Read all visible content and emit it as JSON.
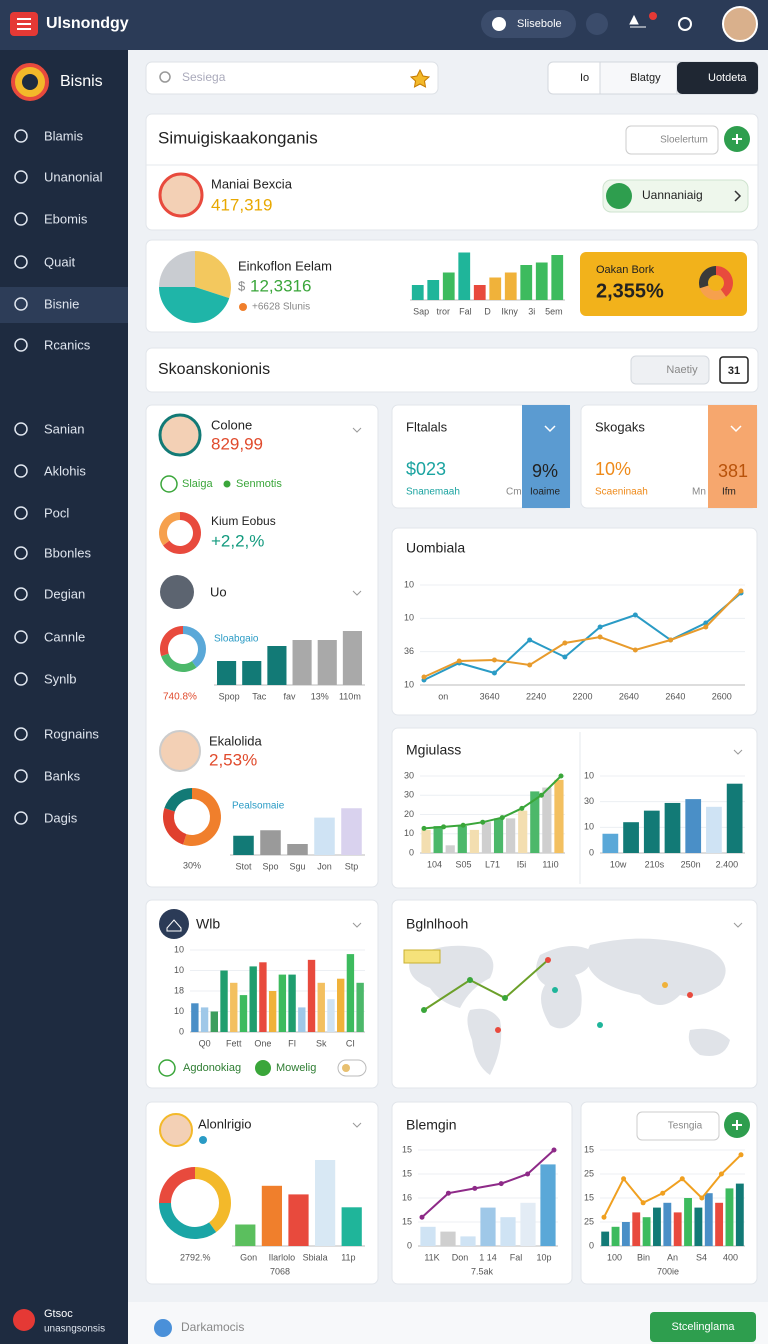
{
  "topbar": {
    "brand": "Ulsnondgy",
    "user": "Slisebole"
  },
  "sidebar": {
    "title": "Bisnis",
    "items": [
      "Blamis",
      "Unanonial",
      "Ebomis",
      "Quait",
      "Bisnie",
      "Rcanics",
      "Sanian",
      "Aklohis",
      "Pocl",
      "Bbonles",
      "Degian",
      "Cannle",
      "Synlb",
      "Rognains",
      "Banks",
      "Dagis"
    ],
    "active": 4,
    "footer": {
      "title": "Gtsoc",
      "subtitle": "unasngsonsis"
    }
  },
  "toolbar": {
    "search": "Sesiega",
    "buttons": [
      "Io",
      "Blatgy",
      "Uotdeta"
    ]
  },
  "summary": {
    "title": "Simuigiskaakonganis",
    "button": "Sloelertum",
    "person": {
      "name": "Maniai Bexcia",
      "value": "417,319"
    },
    "action": "Uannaniaig"
  },
  "overview": {
    "title": "Einkoflon Eelam",
    "currency": "$",
    "value": "12,3316",
    "delta": "+6628 Slunis",
    "pie": {
      "values": [
        30,
        45,
        25
      ],
      "colors": [
        "#f3c85e",
        "#1fb5a8",
        "#c9ccd1"
      ]
    },
    "chart": {
      "ylim": [
        0,
        100
      ],
      "xlabels": [
        "Sap",
        "tror",
        "Fal",
        "D",
        "Ikny",
        "3i",
        "5em"
      ],
      "bars": [
        30,
        40,
        55,
        95,
        30,
        45,
        55,
        70,
        75,
        90
      ],
      "colors": [
        "#1fb59a",
        "#1fb59a",
        "#3dbb5e",
        "#1fb59a",
        "#e84a3d",
        "#f0b23a",
        "#f0b23a",
        "#3dbb5e",
        "#3dbb5e",
        "#3dbb5e"
      ]
    },
    "highlight": {
      "label": "Oakan Bork",
      "value": "2,355%",
      "donut": {
        "values": [
          40,
          30,
          30
        ],
        "colors": [
          "#e84a3d",
          "#f6a04d",
          "#3a3a3a"
        ]
      }
    }
  },
  "section": {
    "title": "Skoanskonionis",
    "button": "Naetiy",
    "date": "31"
  },
  "left_card": {
    "profile": {
      "name": "Colone",
      "value": "829,99"
    },
    "tags": [
      "Slaiga",
      "Senmotis"
    ],
    "metric": {
      "name": "Kium Eobus",
      "value": "+2,2,%",
      "donut": {
        "values": [
          65,
          35
        ],
        "colors": [
          "#e84a3d",
          "#f6a04d"
        ]
      }
    },
    "group": {
      "name": "Uo",
      "legend": "Sloabgaio",
      "note": "740.8%",
      "donut": {
        "values": [
          40,
          30,
          30
        ],
        "colors": [
          "#5aa8d8",
          "#4cb86a",
          "#e84a3d"
        ]
      },
      "chart": {
        "ylim": [
          0,
          100
        ],
        "xlabels": [
          "Spop",
          "Tac",
          "fav",
          "13%",
          "110m"
        ],
        "bars": [
          40,
          40,
          65,
          75,
          75,
          90
        ],
        "colors": [
          "#127a76",
          "#127a76",
          "#127a76",
          "#a9a9a9",
          "#a9a9a9",
          "#a9a9a9"
        ]
      }
    },
    "profile2": {
      "name": "Ekalolida",
      "value": "2,53%"
    },
    "group2": {
      "legend": "Pealsomaie",
      "note": "30%",
      "donut": {
        "values": [
          55,
          25,
          20
        ],
        "colors": [
          "#f07f2c",
          "#e0402e",
          "#127a76"
        ]
      },
      "chart": {
        "ylim": [
          0,
          100
        ],
        "xlabels": [
          "Stot",
          "Spo",
          "Sgu",
          "Jon",
          "Stp"
        ],
        "bars": [
          35,
          45,
          20,
          68,
          85
        ],
        "colors": [
          "#127a76",
          "#9a9a9a",
          "#9a9a9a",
          "#cfe3f4",
          "#d9d2ee"
        ]
      }
    }
  },
  "stats": [
    {
      "title": "Fltalals",
      "value": "$023",
      "caption": "Snanemaah",
      "side_value": "9%",
      "side_prefix": "Cm",
      "side_caption": "Ioaime"
    },
    {
      "title": "Skogaks",
      "value": "10%",
      "caption": "Scaeninaah",
      "side_value": "381",
      "side_prefix": "Mn",
      "side_caption": "Ifm"
    }
  ],
  "line_chart": {
    "title": "Uombiala",
    "ylim": [
      0,
      100
    ],
    "ylabels": [
      "10",
      "10",
      "36",
      "10"
    ],
    "xlabels": [
      "on",
      "3640",
      "2240",
      "2200",
      "2640",
      "2640",
      "2600"
    ],
    "lines": [
      {
        "color": "#2a9bc5",
        "values": [
          5,
          22,
          12,
          45,
          28,
          58,
          70,
          45,
          62,
          92
        ]
      },
      {
        "color": "#e89b2c",
        "values": [
          8,
          24,
          25,
          20,
          42,
          48,
          35,
          45,
          58,
          94
        ]
      }
    ]
  },
  "combo": {
    "title": "Mgiulass",
    "left": {
      "ylim": [
        0,
        100
      ],
      "ylabels": [
        "30",
        "30",
        "20",
        "10",
        "0"
      ],
      "xlabels": [
        "104",
        "S05",
        "L71",
        "I5i",
        "11i0"
      ],
      "bars": [
        30,
        35,
        10,
        35,
        30,
        40,
        45,
        45,
        55,
        80,
        85,
        95
      ],
      "colors": [
        "#f3deb0",
        "#4cb86a",
        "#cfcfcf",
        "#4cb86a",
        "#f3deb0",
        "#cfcfcf",
        "#4cb86a",
        "#cfcfcf",
        "#f3deb0",
        "#4cb86a",
        "#cfcfcf",
        "#f3c060"
      ],
      "lines": [
        {
          "color": "#3aa63a",
          "values": [
            32,
            34,
            36,
            40,
            46,
            58,
            75,
            100
          ]
        }
      ]
    },
    "right": {
      "ylim": [
        0,
        100
      ],
      "ylabels": [
        "10",
        "30",
        "10",
        "0"
      ],
      "xlabels": [
        "10w",
        "210s",
        "250n",
        "2.400"
      ],
      "bars": [
        25,
        40,
        55,
        65,
        70,
        60,
        90
      ],
      "colors": [
        "#5aa8d8",
        "#127a76",
        "#127a76",
        "#127a76",
        "#4a8fc7",
        "#cfe3f4",
        "#127a76"
      ]
    }
  },
  "wlb": {
    "title": "Wlb",
    "legend": [
      "Agdonokiag",
      "Mowelig"
    ],
    "chart": {
      "ylim": [
        0,
        100
      ],
      "ylabels": [
        "10",
        "10",
        "18",
        "10",
        "0"
      ],
      "xlabels": [
        "Q0",
        "Fett",
        "One",
        "FI",
        "Sk",
        "CI"
      ],
      "bars": [
        35,
        30,
        25,
        75,
        60,
        45,
        80,
        85,
        50,
        70,
        70,
        30,
        88,
        60,
        40,
        65,
        95,
        60
      ],
      "colors": [
        "#4a8fc7",
        "#9fc8e8",
        "#3d9e5e",
        "#1f9e6e",
        "#f3c060",
        "#3dbb5e",
        "#1f9e6e",
        "#e84a3d",
        "#f0b23a",
        "#3dbb5e",
        "#1f9e6e",
        "#9fc8e8",
        "#e84a3d",
        "#f3c060",
        "#cfe3f4",
        "#f0b23a",
        "#3dbb5e",
        "#4cb86a"
      ]
    }
  },
  "map": {
    "title": "Bglnlhooh"
  },
  "bottom": [
    {
      "title": "Alonlrigio",
      "note": "2792.%",
      "subnote": "7068",
      "donut": {
        "values": [
          40,
          35,
          25
        ],
        "colors": [
          "#f3b92a",
          "#1aa5a5",
          "#e84a3d"
        ]
      },
      "chart": {
        "ylim": [
          0,
          100
        ],
        "xlabels": [
          "Gon",
          "Ilarlolo",
          "Sbiala",
          "11p"
        ],
        "bars": [
          25,
          70,
          60,
          100,
          45
        ],
        "colors": [
          "#5bbf5e",
          "#f07f2c",
          "#e84a3d",
          "#d8e8f4",
          "#1fb59a"
        ]
      }
    },
    {
      "title": "Blemgin",
      "subnote": "7.5ak",
      "chart": {
        "ylim": [
          0,
          100
        ],
        "ylabels": [
          "15",
          "15",
          "16",
          "15",
          "0"
        ],
        "xlabels": [
          "11K",
          "Don",
          "1 14",
          "Fal",
          "10p"
        ],
        "bars": [
          20,
          15,
          10,
          40,
          30,
          45,
          85
        ],
        "colors": [
          "#cfe3f4",
          "#cfcfcf",
          "#cfe3f4",
          "#9fc8e8",
          "#cfe3f4",
          "#e3ecf5",
          "#5aa8d8"
        ],
        "lines": [
          {
            "color": "#8e2a88",
            "values": [
              30,
              55,
              60,
              65,
              75,
              100
            ]
          }
        ]
      }
    },
    {
      "button": "Tesngia",
      "subnote": "700ie",
      "chart": {
        "ylim": [
          0,
          100
        ],
        "ylabels": [
          "15",
          "25",
          "15",
          "25",
          "0"
        ],
        "xlabels": [
          "100",
          "Bin",
          "An",
          "S4",
          "400"
        ],
        "bars": [
          15,
          20,
          25,
          35,
          30,
          40,
          45,
          35,
          50,
          40,
          55,
          45,
          60,
          65
        ],
        "colors": [
          "#127a76",
          "#3dbb5e",
          "#4a8fc7",
          "#e84a3d",
          "#3dbb5e",
          "#127a76",
          "#4a8fc7",
          "#e84a3d",
          "#3dbb5e",
          "#127a76",
          "#4a8fc7",
          "#e84a3d",
          "#3dbb5e",
          "#127a76"
        ],
        "lines": [
          {
            "color": "#f0a020",
            "values": [
              30,
              70,
              45,
              55,
              70,
              50,
              75,
              95
            ]
          }
        ]
      }
    }
  ],
  "footer": {
    "label": "Darkamocis",
    "button": "Stcelinglama"
  }
}
